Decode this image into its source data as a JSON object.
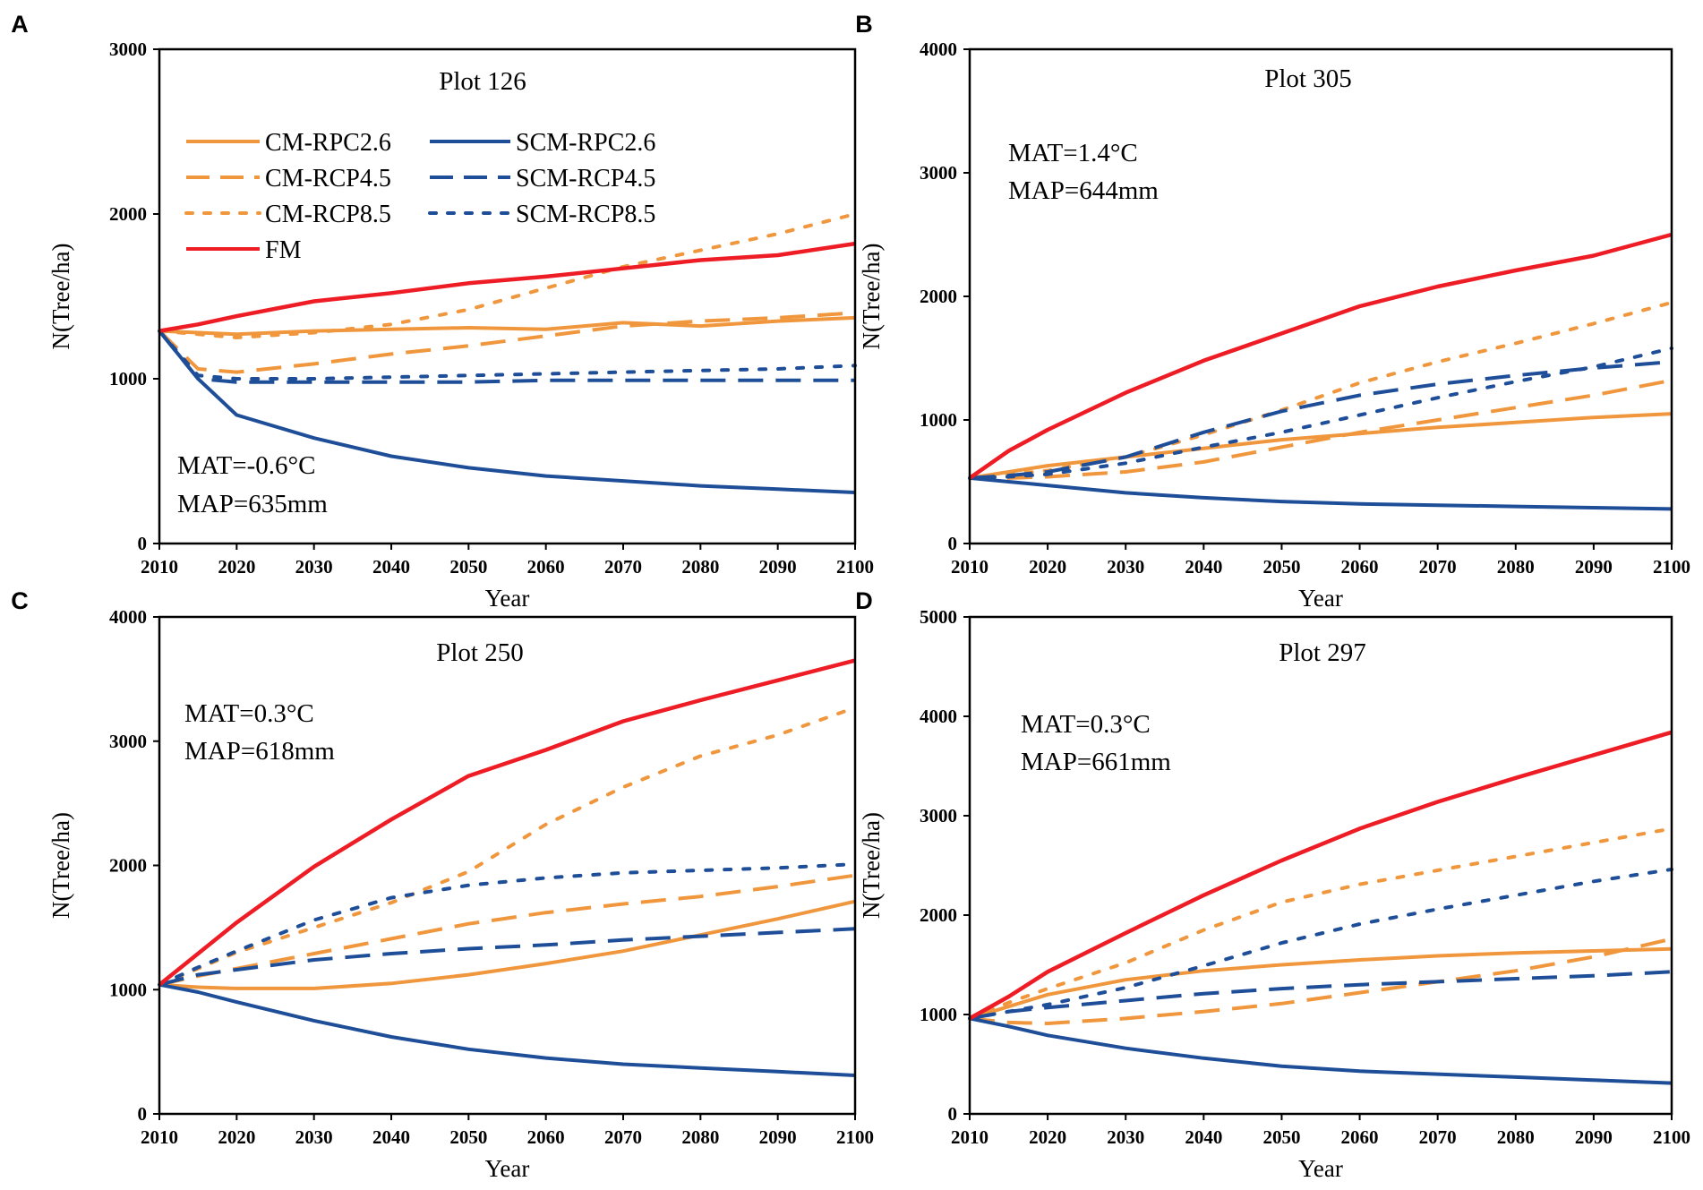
{
  "colors": {
    "cm": "#f0973e",
    "scm": "#1f4e99",
    "fm": "#ee1c24",
    "axis": "#000000"
  },
  "legend": [
    {
      "label": "CM-RPC2.6",
      "color": "cm",
      "dash": "solid"
    },
    {
      "label": "SCM-RPC2.6",
      "color": "scm",
      "dash": "solid"
    },
    {
      "label": "CM-RCP4.5",
      "color": "cm",
      "dash": "dash"
    },
    {
      "label": "SCM-RCP4.5",
      "color": "scm",
      "dash": "dash"
    },
    {
      "label": "CM-RCP8.5",
      "color": "cm",
      "dash": "dot"
    },
    {
      "label": "SCM-RCP8.5",
      "color": "scm",
      "dash": "dot"
    },
    {
      "label": "FM",
      "color": "fm",
      "dash": "solid"
    }
  ],
  "chart_data": [
    {
      "panel": "A",
      "type": "line",
      "title": "Plot 126",
      "xlabel": "Year",
      "ylabel": "N(Tree/ha)",
      "xlim": [
        2010,
        2100
      ],
      "ylim": [
        0,
        3000
      ],
      "xticks": [
        2010,
        2020,
        2030,
        2040,
        2050,
        2060,
        2070,
        2080,
        2090,
        2100
      ],
      "yticks": [
        0,
        1000,
        2000,
        3000
      ],
      "annotations": [
        "MAT=-0.6°C",
        "MAP=635mm"
      ],
      "x": [
        2010,
        2015,
        2020,
        2030,
        2040,
        2050,
        2060,
        2070,
        2080,
        2090,
        2100
      ],
      "series": [
        {
          "name": "CM-RPC2.6",
          "values": [
            1290,
            1280,
            1270,
            1290,
            1300,
            1310,
            1300,
            1340,
            1320,
            1350,
            1370
          ]
        },
        {
          "name": "SCM-RPC2.6",
          "values": [
            1290,
            1000,
            780,
            640,
            530,
            460,
            410,
            380,
            350,
            330,
            310
          ]
        },
        {
          "name": "CM-RCP4.5",
          "values": [
            1290,
            1060,
            1040,
            1090,
            1150,
            1200,
            1260,
            1320,
            1350,
            1370,
            1400
          ]
        },
        {
          "name": "SCM-RCP4.5",
          "values": [
            1290,
            1000,
            980,
            980,
            980,
            980,
            990,
            990,
            990,
            990,
            990
          ]
        },
        {
          "name": "CM-RCP8.5",
          "values": [
            1290,
            1270,
            1250,
            1280,
            1330,
            1420,
            1550,
            1680,
            1780,
            1880,
            2000
          ]
        },
        {
          "name": "SCM-RCP8.5",
          "values": [
            1290,
            1020,
            1000,
            1000,
            1010,
            1020,
            1030,
            1040,
            1050,
            1060,
            1080
          ]
        },
        {
          "name": "FM",
          "values": [
            1290,
            1330,
            1380,
            1470,
            1520,
            1580,
            1620,
            1670,
            1720,
            1750,
            1820
          ]
        }
      ]
    },
    {
      "panel": "B",
      "type": "line",
      "title": "Plot 305",
      "xlabel": "Year",
      "ylabel": "N(Tree/ha)",
      "xlim": [
        2010,
        2100
      ],
      "ylim": [
        0,
        4000
      ],
      "xticks": [
        2010,
        2020,
        2030,
        2040,
        2050,
        2060,
        2070,
        2080,
        2090,
        2100
      ],
      "yticks": [
        0,
        1000,
        2000,
        3000,
        4000
      ],
      "annotations": [
        "MAT=1.4°C",
        "MAP=644mm"
      ],
      "x": [
        2010,
        2015,
        2020,
        2030,
        2040,
        2050,
        2060,
        2070,
        2080,
        2090,
        2100
      ],
      "series": [
        {
          "name": "CM-RPC2.6",
          "values": [
            530,
            580,
            630,
            700,
            770,
            840,
            890,
            940,
            980,
            1020,
            1050
          ]
        },
        {
          "name": "SCM-RPC2.6",
          "values": [
            530,
            500,
            470,
            410,
            370,
            340,
            320,
            310,
            300,
            290,
            280
          ]
        },
        {
          "name": "CM-RCP4.5",
          "values": [
            530,
            530,
            540,
            580,
            660,
            780,
            900,
            1000,
            1100,
            1200,
            1320
          ]
        },
        {
          "name": "SCM-RCP4.5",
          "values": [
            530,
            550,
            580,
            700,
            900,
            1070,
            1200,
            1290,
            1360,
            1420,
            1470
          ]
        },
        {
          "name": "CM-RCP8.5",
          "values": [
            530,
            560,
            590,
            700,
            880,
            1080,
            1300,
            1470,
            1620,
            1780,
            1950
          ]
        },
        {
          "name": "SCM-RCP8.5",
          "values": [
            530,
            540,
            560,
            650,
            780,
            900,
            1040,
            1180,
            1310,
            1430,
            1580
          ]
        },
        {
          "name": "FM",
          "values": [
            530,
            750,
            920,
            1220,
            1480,
            1700,
            1920,
            2080,
            2210,
            2330,
            2500
          ]
        }
      ]
    },
    {
      "panel": "C",
      "type": "line",
      "title": "Plot 250",
      "xlabel": "Year",
      "ylabel": "N(Tree/ha)",
      "xlim": [
        2010,
        2100
      ],
      "ylim": [
        0,
        4000
      ],
      "xticks": [
        2010,
        2020,
        2030,
        2040,
        2050,
        2060,
        2070,
        2080,
        2090,
        2100
      ],
      "yticks": [
        0,
        1000,
        2000,
        3000,
        4000
      ],
      "annotations": [
        "MAT=0.3°C",
        "MAP=618mm"
      ],
      "x": [
        2010,
        2015,
        2020,
        2030,
        2040,
        2050,
        2060,
        2070,
        2080,
        2090,
        2100
      ],
      "series": [
        {
          "name": "CM-RPC2.6",
          "values": [
            1040,
            1020,
            1010,
            1010,
            1050,
            1120,
            1210,
            1310,
            1440,
            1570,
            1710
          ]
        },
        {
          "name": "SCM-RPC2.6",
          "values": [
            1040,
            980,
            900,
            750,
            620,
            520,
            450,
            400,
            370,
            340,
            310
          ]
        },
        {
          "name": "CM-RCP4.5",
          "values": [
            1040,
            1110,
            1170,
            1290,
            1410,
            1530,
            1620,
            1690,
            1750,
            1830,
            1920
          ]
        },
        {
          "name": "SCM-RCP4.5",
          "values": [
            1040,
            1120,
            1160,
            1240,
            1290,
            1330,
            1360,
            1400,
            1430,
            1460,
            1490
          ]
        },
        {
          "name": "CM-RCP8.5",
          "values": [
            1040,
            1170,
            1300,
            1500,
            1700,
            1950,
            2330,
            2630,
            2880,
            3050,
            3270
          ]
        },
        {
          "name": "SCM-RCP8.5",
          "values": [
            1040,
            1180,
            1310,
            1560,
            1740,
            1840,
            1900,
            1940,
            1960,
            1980,
            2010
          ]
        },
        {
          "name": "FM",
          "values": [
            1040,
            1290,
            1540,
            1990,
            2370,
            2720,
            2930,
            3160,
            3330,
            3490,
            3650
          ]
        }
      ]
    },
    {
      "panel": "D",
      "type": "line",
      "title": "Plot 297",
      "xlabel": "Year",
      "ylabel": "N(Tree/ha)",
      "xlim": [
        2010,
        2100
      ],
      "ylim": [
        0,
        5000
      ],
      "xticks": [
        2010,
        2020,
        2030,
        2040,
        2050,
        2060,
        2070,
        2080,
        2090,
        2100
      ],
      "yticks": [
        0,
        1000,
        2000,
        3000,
        4000,
        5000
      ],
      "annotations": [
        "MAT=0.3°C",
        "MAP=661mm"
      ],
      "x": [
        2010,
        2015,
        2020,
        2030,
        2040,
        2050,
        2060,
        2070,
        2080,
        2090,
        2100
      ],
      "series": [
        {
          "name": "CM-RPC2.6",
          "values": [
            960,
            1080,
            1200,
            1350,
            1440,
            1500,
            1550,
            1590,
            1620,
            1640,
            1660
          ]
        },
        {
          "name": "SCM-RPC2.6",
          "values": [
            960,
            880,
            790,
            660,
            560,
            480,
            430,
            400,
            370,
            340,
            310
          ]
        },
        {
          "name": "CM-RCP4.5",
          "values": [
            960,
            920,
            910,
            960,
            1030,
            1110,
            1220,
            1330,
            1440,
            1580,
            1760
          ]
        },
        {
          "name": "SCM-RCP4.5",
          "values": [
            960,
            1030,
            1070,
            1140,
            1210,
            1260,
            1300,
            1330,
            1360,
            1390,
            1430
          ]
        },
        {
          "name": "CM-RCP8.5",
          "values": [
            960,
            1120,
            1260,
            1520,
            1850,
            2130,
            2310,
            2450,
            2590,
            2730,
            2870
          ]
        },
        {
          "name": "SCM-RCP8.5",
          "values": [
            960,
            1030,
            1100,
            1270,
            1490,
            1720,
            1910,
            2060,
            2200,
            2340,
            2460
          ]
        },
        {
          "name": "FM",
          "values": [
            960,
            1180,
            1430,
            1820,
            2200,
            2550,
            2870,
            3140,
            3380,
            3610,
            3840
          ]
        }
      ]
    }
  ]
}
